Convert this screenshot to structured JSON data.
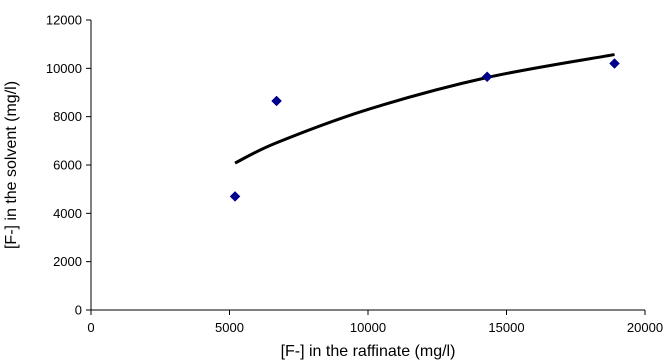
{
  "chart_data": {
    "type": "scatter",
    "title": "",
    "xlabel": "[F-] in the raffinate (mg/l)",
    "ylabel": "[F-] in the solvent (mg/l)",
    "xlim": [
      0,
      20000
    ],
    "ylim": [
      0,
      12000
    ],
    "xticks": [
      0,
      5000,
      10000,
      15000,
      20000
    ],
    "yticks": [
      0,
      2000,
      4000,
      6000,
      8000,
      10000,
      12000
    ],
    "xtick_labels": [
      "0",
      "5000",
      "10000",
      "15000",
      "20000"
    ],
    "ytick_labels": [
      "0",
      "2000",
      "4000",
      "6000",
      "8000",
      "10000",
      "12000"
    ],
    "grid": false,
    "legend": "none",
    "series": [
      {
        "marker": "diamond",
        "color": "#00008B",
        "points": [
          {
            "x": 5200,
            "y": 4700
          },
          {
            "x": 6700,
            "y": 8650
          },
          {
            "x": 14300,
            "y": 9650
          },
          {
            "x": 18900,
            "y": 10200
          }
        ]
      }
    ],
    "trendline": {
      "kind": "power",
      "color": "#000000",
      "x_from": 5200,
      "x_to": 18900,
      "points": [
        {
          "x": 5200,
          "y": 6080
        },
        {
          "x": 6700,
          "y": 6920
        },
        {
          "x": 10000,
          "y": 8300
        },
        {
          "x": 14300,
          "y": 9620
        },
        {
          "x": 18900,
          "y": 10570
        }
      ]
    }
  }
}
